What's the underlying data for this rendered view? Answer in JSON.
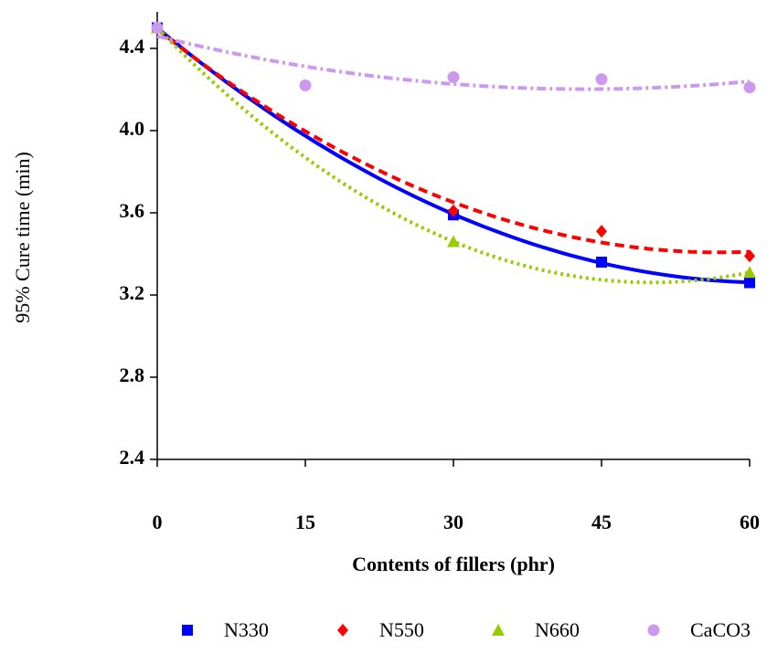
{
  "chart_data": {
    "type": "scatter",
    "x_label": "Contents of fillers (phr)",
    "y_label": "95% Cure time (min)",
    "x": [
      0,
      15,
      30,
      45,
      60
    ],
    "xlim": [
      0,
      60
    ],
    "xticks": [
      0,
      15,
      30,
      45,
      60
    ],
    "ylim": [
      2.4,
      4.6
    ],
    "yticks": [
      2.4,
      2.8,
      {
        "value": 4,
        "label": "4.0"
      },
      3.2,
      3.6,
      4.4
    ],
    "trendline": "poly2",
    "series": [
      {
        "name": "N330",
        "color": "#0000ff",
        "marker": "square",
        "line_style": "solid",
        "values": [
          4.5,
          null,
          3.59,
          3.36,
          3.26
        ]
      },
      {
        "name": "N550",
        "color": "#ff0000",
        "marker": "diamond",
        "line_style": "dashed",
        "values": [
          4.5,
          null,
          3.61,
          3.51,
          3.39
        ]
      },
      {
        "name": "N660",
        "color": "#99cc00",
        "marker": "triangle",
        "line_style": "dotted",
        "values": [
          4.5,
          null,
          3.46,
          null,
          3.31
        ]
      },
      {
        "name": "CaCO3",
        "color": "#cc99ee",
        "marker": "circle",
        "line_style": "dashdot",
        "values": [
          4.5,
          4.22,
          4.26,
          4.25,
          4.21
        ]
      }
    ]
  }
}
